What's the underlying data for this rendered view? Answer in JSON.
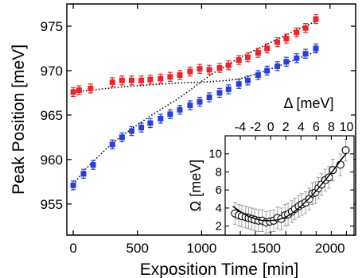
{
  "chart_data": [
    {
      "type": "scatter",
      "xlabel": "Exposition Time [min]",
      "ylabel": "Peak Position [meV]",
      "xlim": [
        -50,
        2200
      ],
      "ylim": [
        951.5,
        977.5
      ],
      "xticks": [
        0,
        500,
        1000,
        1500,
        2000
      ],
      "yticks": [
        955,
        960,
        965,
        970,
        975
      ],
      "colors": {
        "red_series": "#e8262b",
        "blue_series": "#2741d6",
        "fit_line": "#000000"
      },
      "series": [
        {
          "marker": "square-errorbar",
          "color": "#e8262b",
          "x": [
            0,
            45,
            135,
            305,
            380,
            455,
            530,
            600,
            680,
            755,
            830,
            910,
            985,
            1060,
            1140,
            1210,
            1290,
            1360,
            1440,
            1510,
            1590,
            1660,
            1740,
            1810,
            1890
          ],
          "y": [
            967.6,
            967.8,
            968.0,
            968.7,
            968.9,
            968.9,
            968.9,
            969.0,
            969.1,
            969.3,
            969.5,
            969.9,
            970.2,
            970.1,
            970.3,
            970.6,
            971.2,
            971.5,
            972.0,
            972.5,
            973.2,
            973.6,
            974.3,
            974.8,
            975.8
          ],
          "err": [
            0.5,
            0.5,
            0.5,
            0.5,
            0.5,
            0.5,
            0.5,
            0.5,
            0.5,
            0.5,
            0.5,
            0.5,
            0.5,
            0.5,
            0.5,
            0.5,
            0.5,
            0.5,
            0.5,
            0.5,
            0.5,
            0.5,
            0.5,
            0.5,
            0.5
          ]
        },
        {
          "marker": "square-errorbar",
          "color": "#2741d6",
          "x": [
            0,
            80,
            155,
            305,
            380,
            455,
            530,
            600,
            680,
            755,
            830,
            910,
            985,
            1060,
            1140,
            1210,
            1290,
            1360,
            1440,
            1510,
            1590,
            1660,
            1740,
            1810,
            1890
          ],
          "y": [
            957.1,
            958.4,
            959.4,
            961.7,
            962.5,
            963.2,
            963.6,
            964.1,
            964.6,
            965.1,
            965.6,
            966.1,
            966.5,
            967.0,
            967.5,
            967.9,
            968.5,
            968.9,
            969.5,
            970.0,
            970.5,
            971.0,
            971.4,
            971.9,
            972.5
          ],
          "err": [
            0.5,
            0.5,
            0.5,
            0.5,
            0.5,
            0.5,
            0.5,
            0.5,
            0.5,
            0.5,
            0.5,
            0.5,
            0.5,
            0.5,
            0.5,
            0.5,
            0.5,
            0.5,
            0.5,
            0.5,
            0.5,
            0.5,
            0.5,
            0.5,
            0.5
          ]
        }
      ],
      "fit_lines": [
        {
          "style": "dotted",
          "x": [
            0,
            200,
            400,
            600,
            800,
            1000,
            1100,
            1200,
            1300,
            1400,
            1500,
            1600,
            1700,
            1800,
            1900
          ],
          "y": [
            967.6,
            967.9,
            968.2,
            968.4,
            968.6,
            968.7,
            968.8,
            968.9,
            969.1,
            969.5,
            970.0,
            970.5,
            971.1,
            971.6,
            972.2
          ]
        },
        {
          "style": "dotted",
          "x": [
            0,
            100,
            200,
            300,
            400,
            500,
            600,
            700,
            800,
            900,
            1000,
            1100,
            1200,
            1300,
            1400,
            1500,
            1600,
            1700,
            1800,
            1900
          ],
          "y": [
            957.2,
            959.0,
            960.4,
            961.8,
            962.9,
            963.9,
            964.9,
            965.8,
            966.7,
            967.7,
            968.8,
            969.8,
            970.6,
            971.5,
            972.2,
            972.9,
            973.6,
            974.3,
            975.0,
            975.6
          ]
        }
      ]
    },
    {
      "type": "scatter",
      "xlabel": "Δ [meV]",
      "ylabel": "Ω [meV]",
      "xlim": [
        -6,
        11
      ],
      "ylim": [
        1,
        12
      ],
      "xticks": [
        -4,
        -2,
        0,
        2,
        4,
        6,
        8,
        10
      ],
      "yticks": [
        2,
        4,
        6,
        8,
        10
      ],
      "x_axis_position": "top",
      "series": [
        {
          "marker": "open-circle-errorbar",
          "x": [
            -4.7,
            -4.2,
            -3.8,
            -3.3,
            -2.9,
            -2.5,
            -2.1,
            -1.6,
            -1.1,
            -0.6,
            -0.1,
            0.4,
            0.9,
            1.4,
            1.9,
            2.3,
            2.8,
            3.2,
            3.7,
            4.1,
            4.6,
            5.1,
            5.5,
            5.9,
            6.3,
            6.7,
            7.2,
            7.7,
            8.2,
            9.2,
            9.9
          ],
          "y": [
            3.4,
            3.2,
            3.1,
            3.0,
            2.9,
            2.8,
            2.7,
            2.6,
            2.6,
            2.4,
            2.5,
            2.6,
            2.9,
            2.8,
            3.2,
            3.3,
            3.6,
            3.9,
            4.2,
            4.4,
            4.6,
            5.0,
            5.6,
            5.7,
            6.2,
            6.6,
            7.1,
            7.4,
            8.2,
            8.8,
            10.4
          ],
          "err": [
            1.2,
            1.2,
            1.2,
            1.2,
            1.2,
            1.2,
            1.2,
            1.2,
            1.2,
            1.2,
            1.2,
            1.2,
            1.2,
            1.2,
            1.2,
            1.2,
            1.2,
            1.2,
            1.2,
            1.2,
            1.2,
            1.2,
            1.2,
            1.2,
            1.2,
            1.2,
            1.2,
            1.2,
            1.2,
            1.2,
            1.2
          ]
        }
      ],
      "fit_line": {
        "style": "solid",
        "x": [
          -5,
          -4,
          -3,
          -2,
          -1,
          0,
          1,
          2,
          3,
          4,
          5,
          6,
          7,
          8,
          9,
          10
        ],
        "y": [
          4.2,
          3.6,
          3.1,
          2.8,
          2.6,
          2.6,
          2.7,
          3.0,
          3.5,
          4.2,
          5.0,
          5.9,
          6.9,
          7.9,
          9.0,
          10.1
        ]
      }
    }
  ]
}
